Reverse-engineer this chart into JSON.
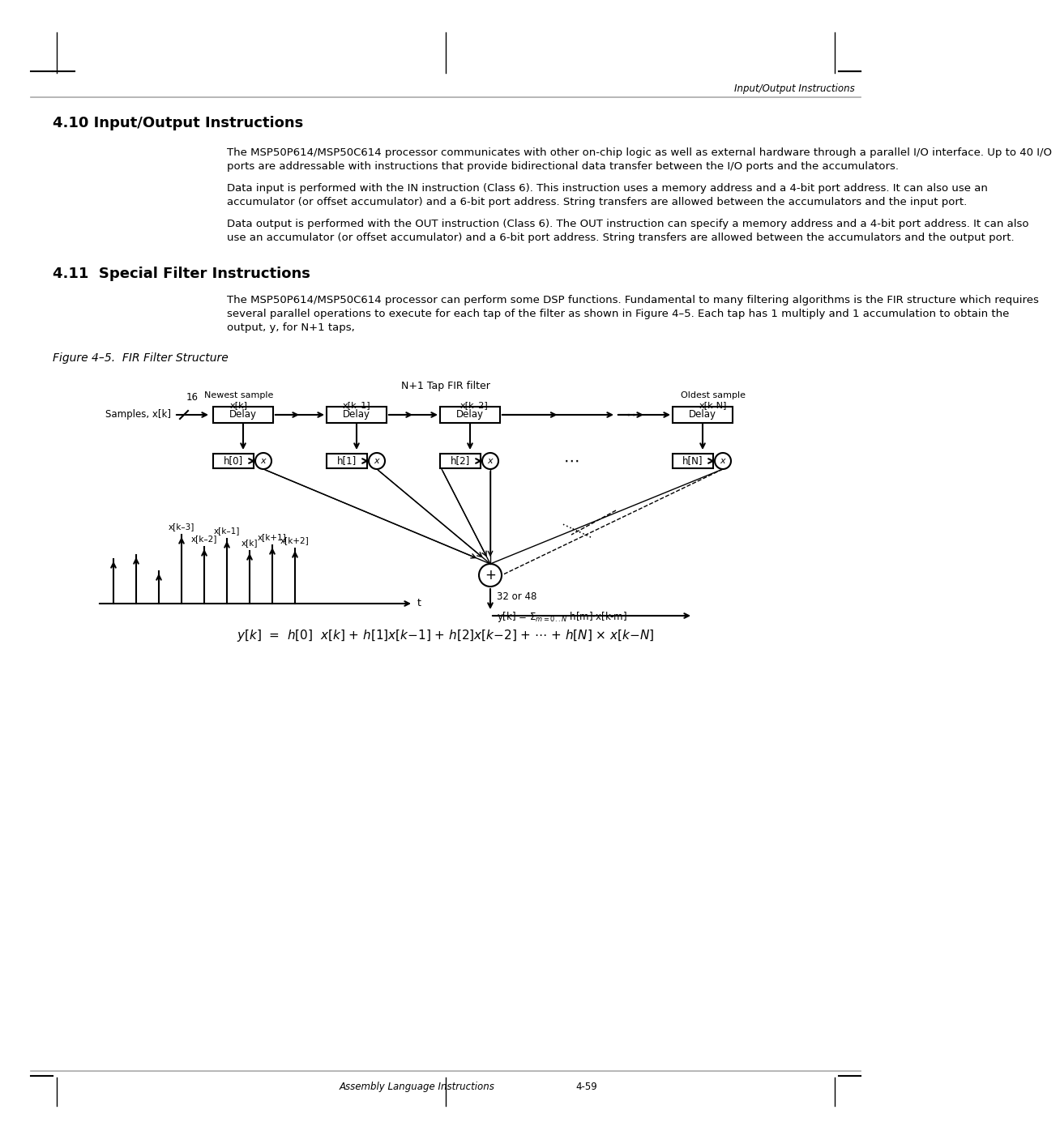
{
  "page_header": "Input/Output Instructions",
  "section_410_title": "4.10 Input/Output Instructions",
  "section_410_text1": "The MSP50P614/MSP50C614 processor communicates with other on-chip logic as well as external hardware through a parallel I/O interface. Up to 40 I/O ports are addressable with instructions that provide bidirectional data transfer between the I/O ports and the accumulators.",
  "section_410_text2": "Data input is performed with the IN instruction (Class 6). This instruction uses a memory address and a 4-bit port address. It can also use an accumulator (or offset accumulator) and a 6-bit port address. String transfers are allowed between the accumulators and the input port.",
  "section_410_text3": "Data output is performed with the OUT instruction (Class 6). The OUT instruction can specify a memory address and a 4-bit port address. It can also use an accumulator (or offset accumulator) and a 6-bit port address. String transfers are allowed between the accumulators and the output port.",
  "section_411_title": "4.11  Special Filter Instructions",
  "section_411_text1": "The MSP50P614/MSP50C614 processor can perform some DSP functions. Fundamental to many filtering algorithms is the FIR structure which requires several parallel operations to execute for each tap of the filter as shown in Figure 4–5. Each tap has 1 multiply and 1 accumulation to obtain the output, y, for N+1 taps,",
  "figure_caption": "Figure 4–5.  FIR Filter Structure",
  "formula": "y[k]  =  h[0]  x[k] + h[1]x[k-1] + h[2]x[k-2] + ⋯ + h[N] × x[k-N]",
  "footer_left": "Assembly Language Instructions",
  "footer_right": "4-59",
  "background": "#ffffff"
}
